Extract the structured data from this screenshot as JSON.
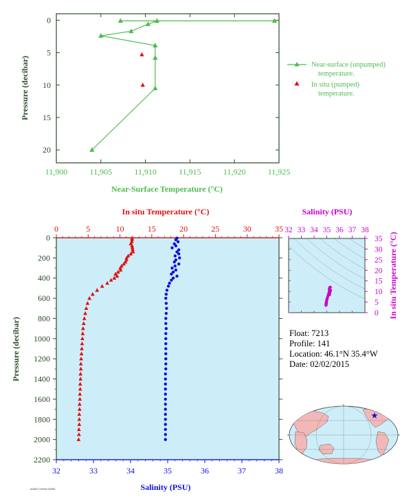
{
  "colors": {
    "near_surface": "#4dbb4d",
    "in_situ_temp": "#e01010",
    "salinity": "#1010e0",
    "plot_bg": "#cdeef9",
    "axis_dark": "#2b4a2b",
    "magenta": "#cc00cc"
  },
  "icon_names": {
    "map": "world-map-icon",
    "float_marker": "star-icon"
  },
  "info": {
    "float_label": "Float:",
    "float_value": "7213",
    "profile_label": "Profile:",
    "profile_value": "141",
    "location_label": "Location:",
    "location_value": "46.1°N  35.4°W",
    "date_label": "Date:",
    "date_value": "02/02/2015"
  },
  "footer_text": "A0000 Y/H/W 00000",
  "chart_data": [
    {
      "type": "line",
      "xlabel": "Near-Surface Temperature (°C)",
      "ylabel": "Pressure (decibar)",
      "xlim": [
        11.9,
        11.925
      ],
      "ylim": [
        22,
        -1
      ],
      "xticks": [
        "11,900",
        "11,905",
        "11,910",
        "11,915",
        "11,920",
        "11,925"
      ],
      "xtick_values": [
        11.9,
        11.905,
        11.91,
        11.915,
        11.92,
        11.925
      ],
      "yticks": [
        0,
        5,
        10,
        15,
        20
      ],
      "legend_position": "right",
      "series": [
        {
          "name": "Near-surface (unpumped) temperature.",
          "marker": "triangle",
          "x": [
            11.9072,
            11.9245,
            11.9113,
            11.9103,
            11.9084,
            11.905,
            11.9111,
            11.9111,
            11.9111,
            11.904
          ],
          "y": [
            0.1,
            0.1,
            0.1,
            0.6,
            1.7,
            2.4,
            3.9,
            5.8,
            10.5,
            20.0
          ]
        },
        {
          "name": "In situ (pumped) temperature.",
          "marker": "triangle",
          "x": [
            11.9096,
            11.9097
          ],
          "y": [
            5.3,
            10.0
          ]
        }
      ]
    },
    {
      "type": "scatter",
      "top_axis_label": "In situ Temperature (°C)",
      "bottom_axis_label": "Salinity (PSU)",
      "ylabel": "Pressure (decibar)",
      "temperature_lim": [
        0,
        35
      ],
      "temperature_ticks": [
        0,
        5,
        10,
        15,
        20,
        25,
        30,
        35
      ],
      "salinity_lim": [
        32,
        38
      ],
      "salinity_ticks": [
        32,
        33,
        34,
        35,
        36,
        37,
        38
      ],
      "ylim": [
        2200,
        0
      ],
      "yticks": [
        0,
        200,
        400,
        600,
        800,
        1000,
        1200,
        1400,
        1600,
        1800,
        2000,
        2200
      ],
      "series": [
        {
          "name": "In situ Temperature (°C)",
          "marker": "triangle",
          "pressure": [
            5,
            20,
            40,
            60,
            80,
            100,
            120,
            140,
            160,
            180,
            200,
            220,
            240,
            260,
            280,
            300,
            320,
            340,
            360,
            380,
            400,
            420,
            450,
            480,
            520,
            560,
            600,
            650,
            700,
            750,
            800,
            850,
            900,
            950,
            1000,
            1050,
            1100,
            1150,
            1200,
            1250,
            1300,
            1350,
            1400,
            1450,
            1500,
            1550,
            1600,
            1650,
            1700,
            1750,
            1800,
            1850,
            1900,
            1950,
            2000
          ],
          "values": [
            11.9,
            11.9,
            11.85,
            11.7,
            11.9,
            11.95,
            12.0,
            12.05,
            11.7,
            11.3,
            11.05,
            11.0,
            10.85,
            10.6,
            10.25,
            10.05,
            10.1,
            9.7,
            9.3,
            9.55,
            9.1,
            8.6,
            8.0,
            7.2,
            6.4,
            5.7,
            5.2,
            4.9,
            4.7,
            4.55,
            4.4,
            4.3,
            4.2,
            4.15,
            4.1,
            4.05,
            4.0,
            3.95,
            3.9,
            3.85,
            3.85,
            3.8,
            3.8,
            3.75,
            3.75,
            3.7,
            3.7,
            3.65,
            3.65,
            3.6,
            3.6,
            3.6,
            3.55,
            3.55,
            3.5
          ]
        },
        {
          "name": "Salinity (PSU)",
          "marker": "circle",
          "pressure": [
            5,
            20,
            40,
            60,
            80,
            100,
            120,
            140,
            160,
            180,
            200,
            220,
            240,
            260,
            280,
            300,
            320,
            340,
            360,
            380,
            400,
            420,
            450,
            480,
            520,
            560,
            600,
            650,
            700,
            750,
            800,
            850,
            900,
            950,
            1000,
            1050,
            1100,
            1150,
            1200,
            1250,
            1300,
            1350,
            1400,
            1450,
            1500,
            1550,
            1600,
            1650,
            1700,
            1750,
            1800,
            1850,
            1900,
            1950,
            2000
          ],
          "values": [
            35.25,
            35.22,
            35.28,
            35.18,
            35.22,
            35.12,
            35.3,
            35.25,
            35.3,
            35.2,
            35.32,
            35.22,
            35.18,
            35.3,
            35.2,
            35.12,
            35.22,
            35.15,
            35.1,
            35.25,
            35.15,
            35.1,
            35.05,
            35.02,
            34.98,
            34.96,
            34.95,
            34.96,
            34.97,
            34.96,
            34.95,
            34.95,
            34.96,
            34.95,
            34.95,
            34.95,
            34.95,
            34.95,
            34.95,
            34.95,
            34.95,
            34.94,
            34.94,
            34.94,
            34.94,
            34.94,
            34.94,
            34.94,
            34.94,
            34.94,
            34.94,
            34.94,
            34.94,
            34.94,
            34.94
          ]
        }
      ]
    },
    {
      "type": "scatter",
      "xlabel": "Salinity (PSU)",
      "ylabel": "In situ Temperature (°C)",
      "xlim": [
        32,
        38
      ],
      "ylim": [
        0,
        35
      ],
      "xticks": [
        32,
        33,
        34,
        35,
        36,
        37,
        38
      ],
      "yticks": [
        0,
        5,
        10,
        15,
        20,
        25,
        30,
        35
      ],
      "series": [
        {
          "name": "T-S",
          "marker": "circle",
          "x": [
            35.25,
            35.22,
            35.28,
            35.2,
            35.3,
            35.2,
            35.25,
            35.15,
            35.22,
            35.1,
            35.05,
            35.02,
            34.99,
            34.98,
            34.97,
            34.96,
            34.95,
            34.95,
            34.95,
            34.94
          ],
          "y": [
            11.9,
            11.7,
            12.0,
            11.0,
            10.5,
            10.0,
            9.5,
            9.0,
            8.5,
            8.0,
            7.0,
            6.4,
            5.7,
            5.2,
            4.8,
            4.5,
            4.2,
            4.0,
            3.8,
            3.5
          ]
        }
      ]
    }
  ]
}
